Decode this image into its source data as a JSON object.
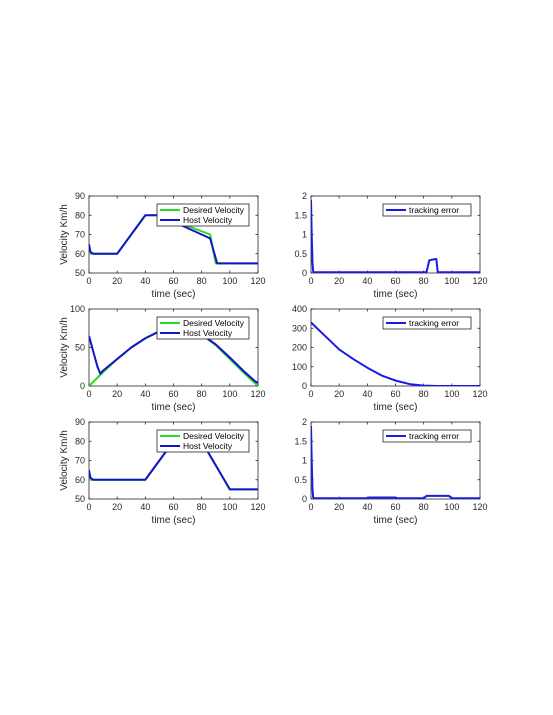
{
  "colors": {
    "desired": "#22dd22",
    "host": "#1414c8",
    "error": "#1a1ae6",
    "axis": "#262626"
  },
  "chart_data": [
    {
      "type": "line",
      "xlabel": "time (sec)",
      "ylabel": "Velocity Km/h",
      "xlim": [
        0,
        120
      ],
      "ylim": [
        50,
        90
      ],
      "xticks": [
        0,
        20,
        40,
        60,
        80,
        100,
        120
      ],
      "yticks": [
        50,
        60,
        70,
        80,
        90
      ],
      "legend": "top-right",
      "series": [
        {
          "name": "Desired Velocity",
          "color_key": "desired",
          "x": [
            0,
            20,
            40,
            50,
            86,
            90,
            120
          ],
          "y": [
            60,
            60,
            80,
            80,
            70,
            55,
            55
          ]
        },
        {
          "name": "Host Velocity",
          "color_key": "host",
          "x": [
            0,
            1,
            3,
            20,
            40,
            50,
            86,
            91,
            120
          ],
          "y": [
            65,
            61,
            60,
            60,
            80,
            80,
            68,
            55,
            55
          ]
        }
      ]
    },
    {
      "type": "line",
      "xlabel": "time (sec)",
      "ylabel": "",
      "xlim": [
        0,
        120
      ],
      "ylim": [
        0,
        2
      ],
      "xticks": [
        0,
        20,
        40,
        60,
        80,
        100,
        120
      ],
      "yticks": [
        0,
        0.5,
        1,
        1.5,
        2
      ],
      "legend": "top-right",
      "series": [
        {
          "name": "tracking error",
          "color_key": "error",
          "x": [
            0,
            0.5,
            1,
            1.5,
            2,
            20,
            40,
            82,
            84,
            88,
            89,
            90,
            120
          ],
          "y": [
            1.9,
            1.0,
            0.3,
            0.05,
            0.02,
            0.02,
            0.02,
            0.02,
            0.33,
            0.36,
            0.36,
            0.02,
            0.02
          ]
        }
      ]
    },
    {
      "type": "line",
      "xlabel": "time (sec)",
      "ylabel": "Velocity Km/h",
      "xlim": [
        0,
        120
      ],
      "ylim": [
        0,
        100
      ],
      "xticks": [
        0,
        20,
        40,
        60,
        80,
        100,
        120
      ],
      "yticks": [
        0,
        50,
        100
      ],
      "legend": "top-right",
      "series": [
        {
          "name": "Desired Velocity",
          "color_key": "desired",
          "x": [
            0,
            10,
            20,
            30,
            40,
            50,
            60,
            70,
            80,
            90,
            100,
            110,
            120
          ],
          "y": [
            0,
            18,
            35,
            50,
            62,
            71,
            76,
            75,
            67,
            53,
            35,
            17,
            0
          ]
        },
        {
          "name": "Host Velocity",
          "color_key": "host",
          "x": [
            0,
            3,
            6,
            8,
            10,
            20,
            30,
            40,
            50,
            60,
            70,
            80,
            90,
            100,
            110,
            118,
            120
          ],
          "y": [
            65,
            45,
            25,
            16,
            20,
            35,
            50,
            62,
            71,
            76,
            75,
            67,
            54,
            37,
            19,
            6,
            4
          ]
        }
      ]
    },
    {
      "type": "line",
      "xlabel": "time (sec)",
      "ylabel": "",
      "xlim": [
        0,
        120
      ],
      "ylim": [
        0,
        400
      ],
      "xticks": [
        0,
        20,
        40,
        60,
        80,
        100,
        120
      ],
      "yticks": [
        0,
        100,
        200,
        300,
        400
      ],
      "legend": "top-right",
      "series": [
        {
          "name": "tracking error",
          "color_key": "error",
          "x": [
            0,
            10,
            20,
            30,
            40,
            50,
            60,
            70,
            80,
            90,
            100,
            110,
            120
          ],
          "y": [
            330,
            260,
            190,
            140,
            95,
            55,
            28,
            10,
            2,
            0,
            0,
            0,
            0
          ]
        }
      ]
    },
    {
      "type": "line",
      "xlabel": "time (sec)",
      "ylabel": "Velocity Km/h",
      "xlim": [
        0,
        120
      ],
      "ylim": [
        50,
        90
      ],
      "xticks": [
        0,
        20,
        40,
        60,
        80,
        100,
        120
      ],
      "yticks": [
        50,
        60,
        70,
        80,
        90
      ],
      "legend": "top-right",
      "series": [
        {
          "name": "Desired Velocity",
          "color_key": "desired",
          "x": [
            0,
            40,
            60,
            80,
            100,
            120
          ],
          "y": [
            60,
            60,
            80,
            80,
            55,
            55
          ]
        },
        {
          "name": "Host Velocity",
          "color_key": "host",
          "x": [
            0,
            1,
            3,
            40,
            60,
            80,
            100,
            120
          ],
          "y": [
            65,
            61,
            60,
            60,
            80,
            80,
            55,
            55
          ]
        }
      ]
    },
    {
      "type": "line",
      "xlabel": "time (sec)",
      "ylabel": "",
      "xlim": [
        0,
        120
      ],
      "ylim": [
        0,
        2
      ],
      "xticks": [
        0,
        20,
        40,
        60,
        80,
        100,
        120
      ],
      "yticks": [
        0,
        0.5,
        1,
        1.5,
        2
      ],
      "legend": "top-right",
      "series": [
        {
          "name": "tracking error",
          "color_key": "error",
          "x": [
            0,
            0.5,
            1,
            1.5,
            2,
            40,
            41,
            60,
            61,
            80,
            82,
            98,
            100,
            120
          ],
          "y": [
            1.9,
            1.0,
            0.3,
            0.05,
            0.02,
            0.02,
            0.04,
            0.04,
            0.02,
            0.02,
            0.08,
            0.08,
            0.02,
            0.02
          ]
        }
      ]
    }
  ]
}
